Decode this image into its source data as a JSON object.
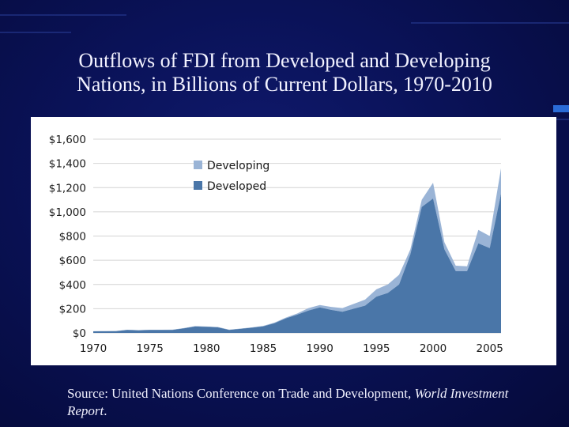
{
  "slide": {
    "title_line1": "Outflows of  FDI from Developed and Developing",
    "title_line2": "Nations, in Billions of Current Dollars, 1970-2010",
    "source_prefix": "Source: United Nations Conference on Trade and Development, ",
    "source_italic": "World Investment Report",
    "source_suffix": "."
  },
  "colors": {
    "developed": "#4a76a8",
    "developing": "#9ab4d6",
    "grid": "#d4d4d4"
  },
  "chart_data": {
    "type": "area",
    "stacked": true,
    "x": [
      1970,
      1971,
      1972,
      1973,
      1974,
      1975,
      1976,
      1977,
      1978,
      1979,
      1980,
      1981,
      1982,
      1983,
      1984,
      1985,
      1986,
      1987,
      1988,
      1989,
      1990,
      1991,
      1992,
      1993,
      1994,
      1995,
      1996,
      1997,
      1998,
      1999,
      2000,
      2001,
      2002,
      2003,
      2004,
      2005,
      2006
    ],
    "series": [
      {
        "name": "Developed",
        "values": [
          13,
          14,
          15,
          24,
          21,
          24,
          24,
          25,
          37,
          53,
          50,
          46,
          25,
          33,
          43,
          54,
          80,
          120,
          150,
          185,
          210,
          190,
          175,
          200,
          225,
          300,
          330,
          400,
          650,
          1040,
          1110,
          690,
          510,
          510,
          740,
          700,
          1150
        ]
      },
      {
        "name": "Developing",
        "values": [
          1,
          1,
          1,
          2,
          2,
          2,
          2,
          2,
          3,
          3,
          3,
          3,
          2,
          3,
          3,
          4,
          5,
          7,
          10,
          20,
          20,
          25,
          30,
          40,
          50,
          60,
          70,
          80,
          40,
          60,
          130,
          60,
          45,
          40,
          110,
          100,
          210
        ]
      }
    ],
    "x_ticks": [
      "1970",
      "1975",
      "1980",
      "1985",
      "1990",
      "1995",
      "2000",
      "2005"
    ],
    "y_ticks": [
      "$0",
      "$200",
      "$400",
      "$600",
      "$800",
      "$1,000",
      "$1,200",
      "$1,400",
      "$1,600"
    ],
    "ylim": [
      0,
      1600
    ],
    "legend": [
      "Developing",
      "Developed"
    ],
    "legend_position": "top-center",
    "grid": true
  }
}
